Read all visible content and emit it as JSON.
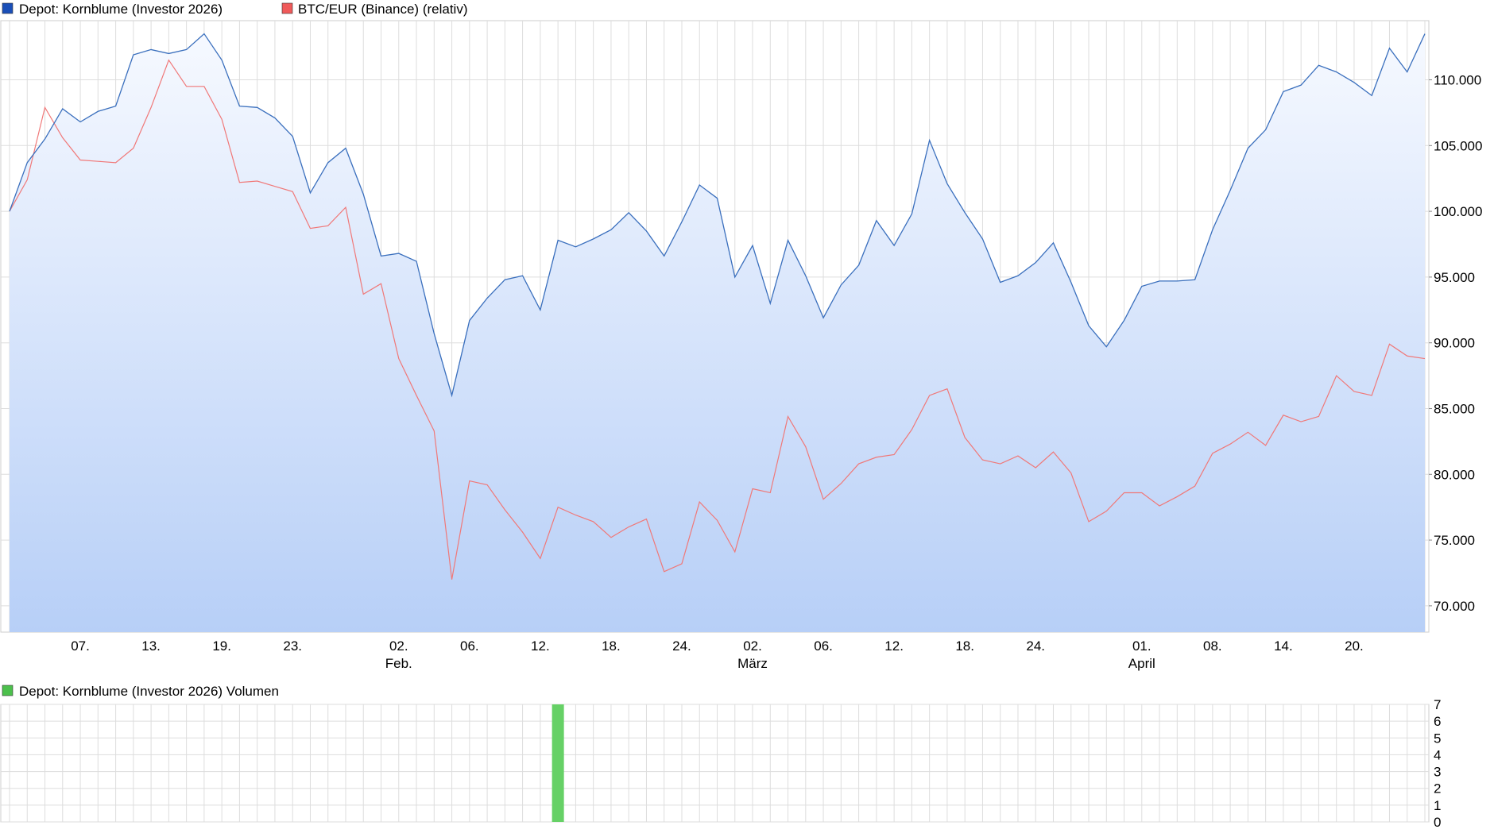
{
  "colors": {
    "depot_line": "#3a6fbd",
    "depot_legend": "#1a4fb8",
    "btc_line": "#f07878",
    "btc_legend": "#f05a5a",
    "volume_bar": "#66d166",
    "volume_legend": "#4cc04c",
    "area_top": "#f6f9ff",
    "area_bottom": "#b7cff7",
    "grid": "#dddddd",
    "axis_text": "#000000"
  },
  "chart_data": [
    {
      "type": "line",
      "legend": {
        "placement": "top-left",
        "entries": [
          "Depot: Kornblume (Investor 2026)",
          "BTC/EUR (Binance) (relativ)"
        ]
      },
      "y_axis": {
        "position": "right",
        "ylim": [
          68000,
          114500
        ],
        "ticks": [
          70000,
          75000,
          80000,
          85000,
          90000,
          95000,
          100000,
          105000,
          110000
        ],
        "tick_labels": [
          "70.000",
          "75.000",
          "80.000",
          "85.000",
          "90.000",
          "95.000",
          "100.000",
          "105.000",
          "110.000"
        ]
      },
      "x_axis": {
        "day_labels": [
          {
            "i": 4,
            "label": "07."
          },
          {
            "i": 8,
            "label": "13."
          },
          {
            "i": 12,
            "label": "19."
          },
          {
            "i": 16,
            "label": "23."
          },
          {
            "i": 22,
            "label": "02."
          },
          {
            "i": 26,
            "label": "06."
          },
          {
            "i": 30,
            "label": "12."
          },
          {
            "i": 34,
            "label": "18."
          },
          {
            "i": 38,
            "label": "24."
          },
          {
            "i": 42,
            "label": "02."
          },
          {
            "i": 46,
            "label": "06."
          },
          {
            "i": 50,
            "label": "12."
          },
          {
            "i": 54,
            "label": "18."
          },
          {
            "i": 58,
            "label": "24."
          },
          {
            "i": 64,
            "label": "01."
          },
          {
            "i": 68,
            "label": "08."
          },
          {
            "i": 72,
            "label": "14."
          },
          {
            "i": 76,
            "label": "20."
          }
        ],
        "month_labels": [
          {
            "i": 22,
            "label": "Feb."
          },
          {
            "i": 42,
            "label": "März"
          },
          {
            "i": 64,
            "label": "April"
          }
        ]
      },
      "grid": true,
      "series": [
        {
          "name": "Depot: Kornblume (Investor 2026)",
          "area": true,
          "values": [
            100000,
            103700,
            105500,
            107800,
            106800,
            107600,
            108000,
            111900,
            112300,
            112000,
            112300,
            113500,
            111500,
            108000,
            107900,
            107100,
            105700,
            101400,
            103700,
            104800,
            101300,
            96600,
            96800,
            96200,
            90700,
            86000,
            91700,
            93400,
            94800,
            95100,
            92500,
            97800,
            97300,
            97900,
            98600,
            99900,
            98500,
            96600,
            99200,
            102000,
            101000,
            95000,
            97400,
            93000,
            97800,
            95100,
            91900,
            94400,
            95900,
            99300,
            97400,
            99800,
            105400,
            102100,
            99900,
            97900,
            94600,
            95100,
            96100,
            97600,
            94600,
            91300,
            89700,
            91700,
            94300,
            94700,
            94700,
            94800,
            98600,
            101600,
            104800,
            106200,
            109100,
            109600,
            111100,
            110600,
            109800,
            108800,
            112400,
            110600,
            113500
          ]
        },
        {
          "name": "BTC/EUR (Binance) (relativ)",
          "area": false,
          "values": [
            100000,
            102400,
            107900,
            105600,
            103900,
            103800,
            103700,
            104800,
            107900,
            111500,
            109500,
            109500,
            107000,
            102200,
            102300,
            101900,
            101500,
            98700,
            98900,
            100300,
            93700,
            94500,
            88800,
            86000,
            83300,
            72000,
            79500,
            79200,
            77300,
            75600,
            73600,
            77500,
            76900,
            76400,
            75200,
            76000,
            76600,
            72600,
            73200,
            77900,
            76500,
            74100,
            78900,
            78600,
            84400,
            82100,
            78100,
            79300,
            80800,
            81300,
            81500,
            83400,
            86000,
            86500,
            82800,
            81100,
            80800,
            81400,
            80500,
            81700,
            80100,
            76400,
            77200,
            78600,
            78600,
            77600,
            78300,
            79100,
            81600,
            82300,
            83200,
            82200,
            84500,
            84000,
            84400,
            87500,
            86300,
            86000,
            89900,
            89000,
            88800
          ]
        }
      ]
    },
    {
      "type": "bar",
      "legend": {
        "placement": "top-left",
        "entries": [
          "Depot: Kornblume (Investor 2026) Volumen"
        ]
      },
      "y_axis": {
        "position": "right",
        "ylim": [
          0,
          7
        ],
        "ticks": [
          0,
          1,
          2,
          3,
          4,
          5,
          6,
          7
        ],
        "tick_labels": [
          "0",
          "1",
          "2",
          "3",
          "4",
          "5",
          "6",
          "7"
        ]
      },
      "grid": true,
      "series": [
        {
          "name": "Depot: Kornblume (Investor 2026) Volumen",
          "bars": [
            {
              "i": 31,
              "value": 7
            }
          ]
        }
      ]
    }
  ]
}
